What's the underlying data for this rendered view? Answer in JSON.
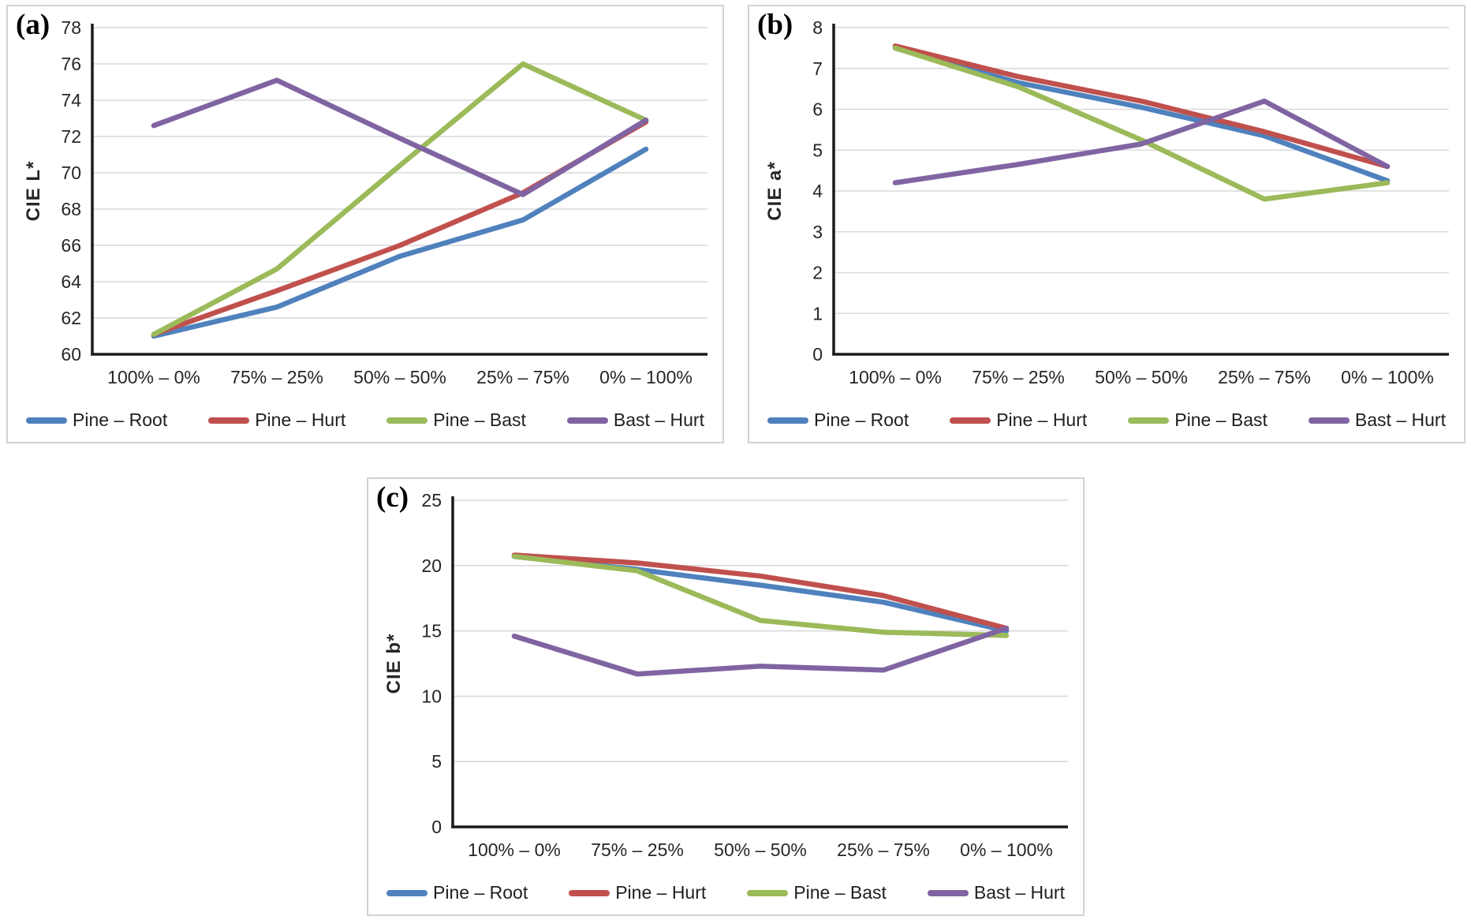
{
  "figure": {
    "background": "#ffffff",
    "gridline_color": "#d9d9d9",
    "axis_color": "#1a1a1a",
    "panel_border_color": "#d2d2d2"
  },
  "categories": [
    "100% – 0%",
    "75% – 25%",
    "50% – 50%",
    "25% – 75%",
    "0% – 100%"
  ],
  "legend_labels": [
    "Pine – Root",
    "Pine – Hurt",
    "Pine – Bast",
    "Bast – Hurt"
  ],
  "chart_data": [
    {
      "type": "line",
      "panel_label": "(a)",
      "title": "",
      "xlabel": "",
      "ylabel": "CIE L*",
      "ylim": [
        60,
        78
      ],
      "ytick_step": 2,
      "grid": true,
      "legend_position": "bottom",
      "categories": [
        "100% – 0%",
        "75% – 25%",
        "50% – 50%",
        "25% – 75%",
        "0% – 100%"
      ],
      "series": [
        {
          "name": "Pine – Root",
          "color": "#4F81BD",
          "values": [
            61.0,
            62.6,
            65.4,
            67.4,
            71.3
          ]
        },
        {
          "name": "Pine – Hurt",
          "color": "#C0504D",
          "values": [
            61.1,
            63.5,
            66.0,
            68.9,
            72.8
          ]
        },
        {
          "name": "Pine – Bast",
          "color": "#9BBA59",
          "values": [
            61.1,
            64.7,
            70.4,
            76.0,
            72.9
          ]
        },
        {
          "name": "Bast – Hurt",
          "color": "#8064A2",
          "values": [
            72.6,
            75.1,
            71.9,
            68.8,
            72.9
          ]
        }
      ]
    },
    {
      "type": "line",
      "panel_label": "(b)",
      "title": "",
      "xlabel": "",
      "ylabel": "CIE a*",
      "ylim": [
        0,
        8
      ],
      "ytick_step": 1,
      "grid": true,
      "legend_position": "bottom",
      "categories": [
        "100% – 0%",
        "75% – 25%",
        "50% – 50%",
        "25% – 75%",
        "0% – 100%"
      ],
      "series": [
        {
          "name": "Pine – Root",
          "color": "#4F81BD",
          "values": [
            7.5,
            6.65,
            6.05,
            5.35,
            4.25
          ]
        },
        {
          "name": "Pine – Hurt",
          "color": "#C0504D",
          "values": [
            7.55,
            6.8,
            6.2,
            5.45,
            4.6
          ]
        },
        {
          "name": "Pine – Bast",
          "color": "#9BBA59",
          "values": [
            7.5,
            6.55,
            5.25,
            3.8,
            4.2
          ]
        },
        {
          "name": "Bast – Hurt",
          "color": "#8064A2",
          "values": [
            4.2,
            4.65,
            5.15,
            6.2,
            4.6
          ]
        }
      ]
    },
    {
      "type": "line",
      "panel_label": "(c)",
      "title": "",
      "xlabel": "",
      "ylabel": "CIE b*",
      "ylim": [
        0,
        25
      ],
      "ytick_step": 5,
      "grid": true,
      "legend_position": "bottom",
      "categories": [
        "100% – 0%",
        "75% – 25%",
        "50% – 50%",
        "25% – 75%",
        "0% – 100%"
      ],
      "series": [
        {
          "name": "Pine – Root",
          "color": "#4F81BD",
          "values": [
            20.7,
            19.7,
            18.5,
            17.2,
            15.0
          ]
        },
        {
          "name": "Pine – Hurt",
          "color": "#C0504D",
          "values": [
            20.8,
            20.2,
            19.2,
            17.7,
            15.2
          ]
        },
        {
          "name": "Pine – Bast",
          "color": "#9BBA59",
          "values": [
            20.7,
            19.6,
            15.8,
            14.9,
            14.65
          ]
        },
        {
          "name": "Bast – Hurt",
          "color": "#8064A2",
          "values": [
            14.6,
            11.7,
            12.3,
            12.0,
            15.2
          ]
        }
      ]
    }
  ]
}
